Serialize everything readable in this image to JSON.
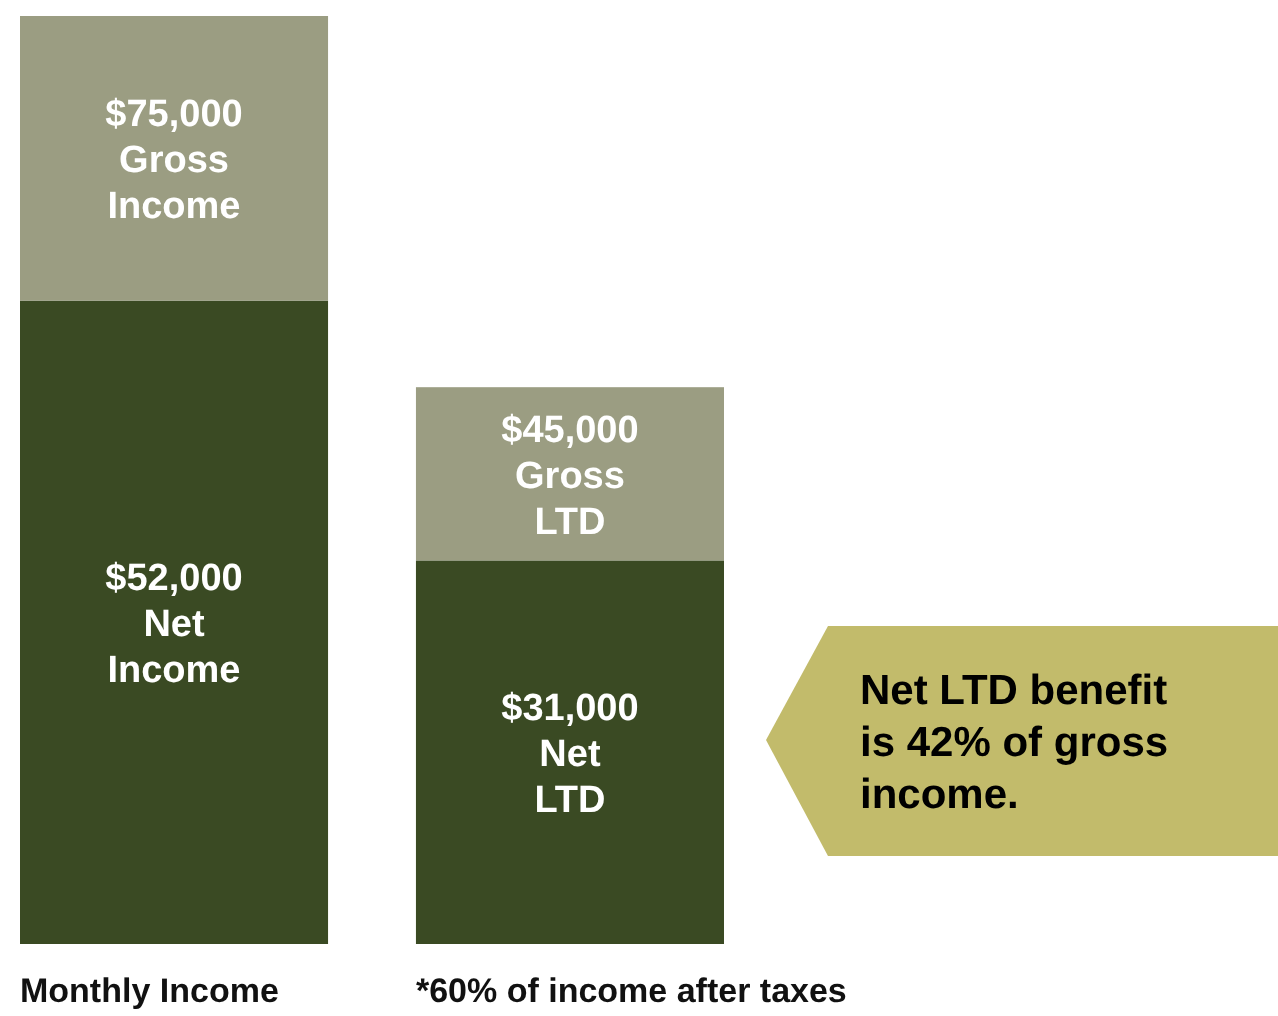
{
  "chart_data": {
    "type": "bar",
    "stacked": true,
    "categories": [
      "Monthly Income",
      "*60% of income after taxes"
    ],
    "series": [
      {
        "color": "#3a4a23",
        "values": [
          52000,
          31000
        ],
        "value_labels": [
          "$52,000 Net Income",
          "$31,000 Net LTD"
        ]
      },
      {
        "color": "#9b9d82",
        "values": [
          23000,
          14000
        ]
      }
    ],
    "totals": [
      "$75,000 Gross Income",
      "$45,000 Gross LTD"
    ],
    "annotations": [
      "Net LTD benefit is 42% of gross income."
    ]
  }
}
